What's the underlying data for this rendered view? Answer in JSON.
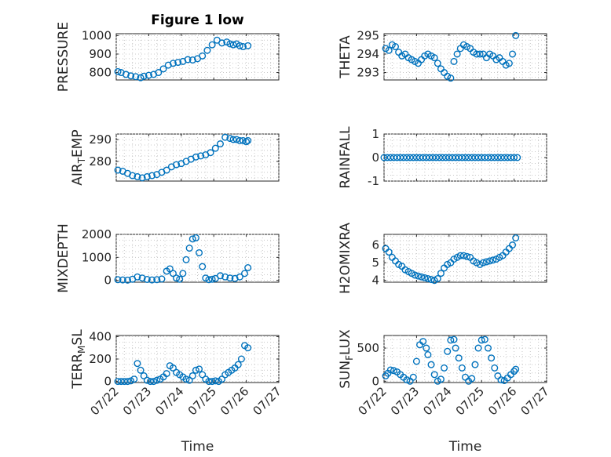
{
  "figure_title": "Figure 1 low",
  "colors": {
    "series": "#0072BD",
    "axes": "#262626",
    "grid": "#c8c8c8"
  },
  "x_axis": {
    "label": "Time",
    "ticks": [
      "07/22",
      "07/23",
      "07/24",
      "07/25",
      "07/26",
      "07/27"
    ],
    "range_days": [
      0,
      5
    ],
    "tick_rotation": "45deg"
  },
  "chart_data": [
    {
      "type": "scatter",
      "ylabel": "PRESSURE",
      "title": "Figure 1 low",
      "ylim": [
        760,
        1010
      ],
      "yticks": [
        800,
        900,
        1000
      ],
      "tick_labels": [
        "800",
        "900",
        "1000"
      ],
      "grid": true,
      "x": [
        0.05,
        0.15,
        0.3,
        0.45,
        0.6,
        0.75,
        0.85,
        1.0,
        1.15,
        1.3,
        1.45,
        1.6,
        1.75,
        1.9,
        2.05,
        2.2,
        2.35,
        2.5,
        2.65,
        2.8,
        2.95,
        3.1,
        3.25,
        3.4,
        3.5,
        3.6,
        3.7,
        3.8,
        3.9,
        4.05
      ],
      "y": [
        805,
        800,
        790,
        782,
        778,
        772,
        780,
        785,
        790,
        800,
        820,
        840,
        850,
        855,
        860,
        870,
        868,
        875,
        890,
        920,
        950,
        975,
        960,
        965,
        955,
        950,
        955,
        945,
        940,
        945
      ]
    },
    {
      "type": "scatter",
      "ylabel": "THETA",
      "ylim": [
        292.6,
        295.1
      ],
      "yticks": [
        293,
        294,
        295
      ],
      "tick_labels": [
        "293",
        "294",
        "295"
      ],
      "grid": true,
      "x": [
        0.05,
        0.15,
        0.25,
        0.35,
        0.45,
        0.55,
        0.65,
        0.75,
        0.85,
        0.95,
        1.05,
        1.15,
        1.25,
        1.35,
        1.45,
        1.55,
        1.65,
        1.75,
        1.85,
        1.95,
        2.05,
        2.15,
        2.25,
        2.35,
        2.45,
        2.55,
        2.65,
        2.75,
        2.85,
        2.95,
        3.05,
        3.15,
        3.25,
        3.35,
        3.45,
        3.55,
        3.65,
        3.75,
        3.85,
        3.95,
        4.05
      ],
      "y": [
        294.3,
        294.2,
        294.5,
        294.4,
        294.1,
        293.9,
        294.0,
        293.8,
        293.7,
        293.6,
        293.5,
        293.7,
        293.9,
        294.0,
        293.9,
        293.8,
        293.5,
        293.2,
        293.0,
        292.8,
        292.7,
        293.6,
        294.0,
        294.3,
        294.5,
        294.4,
        294.3,
        294.1,
        294.0,
        294.0,
        294.0,
        293.8,
        294.0,
        293.9,
        293.7,
        293.8,
        293.6,
        293.4,
        293.5,
        294.0,
        295.0
      ]
    },
    {
      "type": "scatter",
      "ylabel": "AIR_TEMP",
      "ylim": [
        271,
        292.5
      ],
      "yticks": [
        280,
        290
      ],
      "tick_labels": [
        "280",
        "290"
      ],
      "grid": true,
      "x": [
        0.05,
        0.2,
        0.35,
        0.5,
        0.65,
        0.8,
        0.95,
        1.1,
        1.25,
        1.4,
        1.55,
        1.7,
        1.85,
        2.0,
        2.15,
        2.3,
        2.45,
        2.6,
        2.75,
        2.9,
        3.05,
        3.2,
        3.35,
        3.5,
        3.6,
        3.7,
        3.8,
        3.9,
        4.0,
        4.05
      ],
      "y": [
        276,
        275.5,
        274.5,
        273.5,
        273,
        272.5,
        273,
        273.5,
        274,
        275,
        276,
        277.5,
        278.5,
        279,
        280,
        281,
        282,
        282.5,
        283,
        284,
        286,
        288,
        291,
        290.5,
        290,
        290,
        289.5,
        289.5,
        289,
        289.5
      ]
    },
    {
      "type": "scatter",
      "ylabel": "RAINFALL",
      "ylim": [
        -1,
        1
      ],
      "yticks": [
        -1,
        0,
        1
      ],
      "tick_labels": [
        "-1",
        "0",
        "1"
      ],
      "grid": true,
      "x": [
        0.0,
        0.1,
        0.2,
        0.3,
        0.4,
        0.5,
        0.6,
        0.7,
        0.8,
        0.9,
        1.0,
        1.1,
        1.2,
        1.3,
        1.4,
        1.5,
        1.6,
        1.7,
        1.8,
        1.9,
        2.0,
        2.1,
        2.2,
        2.3,
        2.4,
        2.5,
        2.6,
        2.7,
        2.8,
        2.9,
        3.0,
        3.1,
        3.2,
        3.3,
        3.4,
        3.5,
        3.6,
        3.7,
        3.8,
        3.9,
        4.0,
        4.1
      ],
      "y": [
        0,
        0,
        0,
        0,
        0,
        0,
        0,
        0,
        0,
        0,
        0,
        0,
        0,
        0,
        0,
        0,
        0,
        0,
        0,
        0,
        0,
        0,
        0,
        0,
        0,
        0,
        0,
        0,
        0,
        0,
        0,
        0,
        0,
        0,
        0,
        0,
        0,
        0,
        0,
        0,
        0,
        0
      ]
    },
    {
      "type": "scatter",
      "ylabel": "MIXDEPTH",
      "ylim": [
        -80,
        2000
      ],
      "yticks": [
        0,
        1000,
        2000
      ],
      "tick_labels": [
        "0",
        "1000",
        "2000"
      ],
      "grid": true,
      "x": [
        0.05,
        0.2,
        0.35,
        0.5,
        0.65,
        0.8,
        0.95,
        1.1,
        1.25,
        1.4,
        1.55,
        1.65,
        1.75,
        1.85,
        1.95,
        2.05,
        2.15,
        2.25,
        2.35,
        2.45,
        2.55,
        2.65,
        2.75,
        2.85,
        2.95,
        3.05,
        3.2,
        3.35,
        3.5,
        3.65,
        3.8,
        3.95,
        4.05
      ],
      "y": [
        30,
        20,
        10,
        50,
        150,
        100,
        40,
        20,
        30,
        60,
        400,
        500,
        300,
        100,
        50,
        300,
        900,
        1400,
        1800,
        1850,
        1200,
        600,
        100,
        30,
        50,
        80,
        200,
        150,
        100,
        80,
        150,
        300,
        550
      ]
    },
    {
      "type": "scatter",
      "ylabel": "H2OMIXRA",
      "ylim": [
        3.9,
        6.6
      ],
      "yticks": [
        4,
        5,
        6
      ],
      "tick_labels": [
        "4",
        "5",
        "6"
      ],
      "grid": true,
      "x": [
        0.05,
        0.15,
        0.25,
        0.35,
        0.45,
        0.55,
        0.65,
        0.75,
        0.85,
        0.95,
        1.05,
        1.15,
        1.25,
        1.35,
        1.45,
        1.55,
        1.65,
        1.75,
        1.85,
        1.95,
        2.05,
        2.15,
        2.25,
        2.35,
        2.45,
        2.55,
        2.65,
        2.75,
        2.85,
        2.95,
        3.05,
        3.15,
        3.25,
        3.35,
        3.45,
        3.55,
        3.65,
        3.75,
        3.85,
        3.95,
        4.05
      ],
      "y": [
        5.8,
        5.6,
        5.3,
        5.1,
        4.9,
        4.8,
        4.6,
        4.5,
        4.4,
        4.3,
        4.25,
        4.2,
        4.15,
        4.1,
        4.05,
        4.0,
        4.1,
        4.4,
        4.7,
        4.9,
        5.0,
        5.2,
        5.3,
        5.4,
        5.4,
        5.35,
        5.3,
        5.1,
        5.0,
        4.9,
        5.0,
        5.05,
        5.1,
        5.15,
        5.2,
        5.3,
        5.4,
        5.6,
        5.8,
        6.0,
        6.4
      ]
    },
    {
      "type": "scatter",
      "ylabel": "TERR_MSL",
      "ylim": [
        -10,
        410
      ],
      "yticks": [
        0,
        200,
        400
      ],
      "tick_labels": [
        "0",
        "200",
        "400"
      ],
      "grid": true,
      "x": [
        0.05,
        0.15,
        0.25,
        0.35,
        0.45,
        0.55,
        0.65,
        0.75,
        0.85,
        0.95,
        1.05,
        1.15,
        1.25,
        1.35,
        1.45,
        1.55,
        1.65,
        1.75,
        1.85,
        1.95,
        2.05,
        2.15,
        2.25,
        2.35,
        2.45,
        2.55,
        2.65,
        2.75,
        2.85,
        2.95,
        3.05,
        3.15,
        3.25,
        3.35,
        3.45,
        3.55,
        3.65,
        3.75,
        3.85,
        3.95,
        4.05
      ],
      "y": [
        0,
        0,
        0,
        0,
        5,
        20,
        160,
        100,
        50,
        10,
        0,
        0,
        10,
        20,
        40,
        70,
        140,
        120,
        80,
        60,
        40,
        20,
        10,
        50,
        100,
        110,
        60,
        20,
        0,
        0,
        5,
        0,
        20,
        60,
        80,
        100,
        120,
        150,
        200,
        320,
        300
      ]
    },
    {
      "type": "scatter",
      "ylabel": "SUN_FLUX",
      "ylim": [
        -20,
        690
      ],
      "yticks": [
        0,
        500
      ],
      "tick_labels": [
        "0",
        "500"
      ],
      "grid": true,
      "x": [
        0.05,
        0.12,
        0.2,
        0.3,
        0.4,
        0.5,
        0.6,
        0.7,
        0.8,
        0.9,
        1.0,
        1.1,
        1.2,
        1.3,
        1.35,
        1.45,
        1.55,
        1.65,
        1.75,
        1.85,
        1.95,
        2.05,
        2.15,
        2.2,
        2.3,
        2.4,
        2.5,
        2.6,
        2.7,
        2.8,
        2.9,
        3.0,
        3.1,
        3.2,
        3.3,
        3.4,
        3.5,
        3.6,
        3.7,
        3.8,
        3.9,
        4.0,
        4.05
      ],
      "y": [
        80,
        120,
        170,
        160,
        140,
        100,
        60,
        20,
        0,
        60,
        300,
        550,
        600,
        500,
        400,
        250,
        100,
        0,
        30,
        200,
        450,
        620,
        630,
        500,
        350,
        200,
        60,
        0,
        40,
        250,
        500,
        620,
        630,
        500,
        350,
        200,
        80,
        20,
        10,
        50,
        100,
        150,
        180
      ]
    }
  ]
}
